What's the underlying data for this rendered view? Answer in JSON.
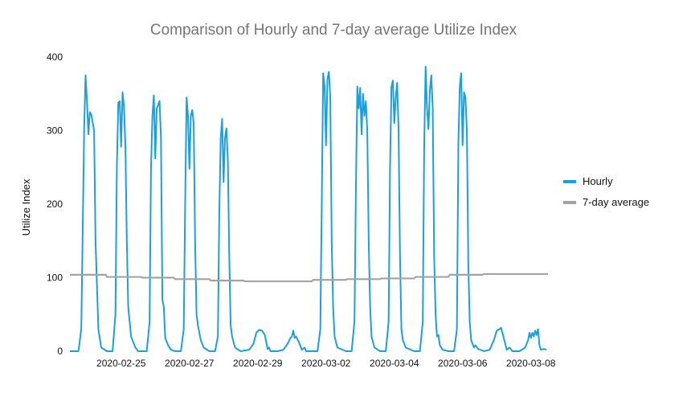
{
  "chart_data": {
    "type": "line",
    "title": "Comparison of Hourly and 7-day average Utilize Index",
    "xlabel": "",
    "ylabel": "Utilize Index",
    "ylim": [
      0,
      400
    ],
    "y_ticks": [
      0,
      100,
      200,
      300,
      400
    ],
    "x_start": "2020-02-24",
    "x_end": "2020-03-09",
    "x_tick_labels": [
      "2020-02-25",
      "2020-02-27",
      "2020-02-29",
      "2020-03-02",
      "2020-03-04",
      "2020-03-06",
      "2020-03-08"
    ],
    "grid": false,
    "legend_position": "right",
    "series": [
      {
        "name": "Hourly",
        "color": "#1a9fe0",
        "points": [
          [
            "2020-02-24 00:00",
            0
          ],
          [
            "2020-02-24 06:00",
            0
          ],
          [
            "2020-02-24 08:00",
            30
          ],
          [
            "2020-02-24 10:00",
            300
          ],
          [
            "2020-02-24 11:00",
            375
          ],
          [
            "2020-02-24 12:00",
            340
          ],
          [
            "2020-02-24 13:00",
            295
          ],
          [
            "2020-02-24 14:00",
            325
          ],
          [
            "2020-02-24 15:00",
            322
          ],
          [
            "2020-02-24 17:00",
            300
          ],
          [
            "2020-02-24 18:00",
            150
          ],
          [
            "2020-02-24 20:00",
            30
          ],
          [
            "2020-02-24 22:00",
            5
          ],
          [
            "2020-02-25 02:00",
            0
          ],
          [
            "2020-02-25 06:00",
            0
          ],
          [
            "2020-02-25 08:00",
            50
          ],
          [
            "2020-02-25 09:00",
            250
          ],
          [
            "2020-02-25 10:00",
            338
          ],
          [
            "2020-02-25 11:00",
            340
          ],
          [
            "2020-02-25 12:00",
            278
          ],
          [
            "2020-02-25 13:00",
            352
          ],
          [
            "2020-02-25 14:00",
            333
          ],
          [
            "2020-02-25 15:00",
            280
          ],
          [
            "2020-02-25 16:00",
            150
          ],
          [
            "2020-02-25 17:00",
            60
          ],
          [
            "2020-02-25 19:00",
            20
          ],
          [
            "2020-02-25 22:00",
            5
          ],
          [
            "2020-02-26 00:00",
            0
          ],
          [
            "2020-02-26 06:00",
            0
          ],
          [
            "2020-02-26 08:00",
            40
          ],
          [
            "2020-02-26 09:00",
            250
          ],
          [
            "2020-02-26 10:00",
            320
          ],
          [
            "2020-02-26 11:00",
            348
          ],
          [
            "2020-02-26 12:00",
            262
          ],
          [
            "2020-02-26 13:00",
            330
          ],
          [
            "2020-02-26 15:00",
            340
          ],
          [
            "2020-02-26 16:00",
            290
          ],
          [
            "2020-02-26 17:00",
            70
          ],
          [
            "2020-02-26 18:00",
            60
          ],
          [
            "2020-02-26 19:00",
            18
          ],
          [
            "2020-02-26 21:00",
            8
          ],
          [
            "2020-02-26 23:00",
            2
          ],
          [
            "2020-02-27 02:00",
            0
          ],
          [
            "2020-02-27 06:00",
            0
          ],
          [
            "2020-02-27 08:00",
            30
          ],
          [
            "2020-02-27 09:00",
            200
          ],
          [
            "2020-02-27 10:00",
            345
          ],
          [
            "2020-02-27 11:00",
            320
          ],
          [
            "2020-02-27 12:00",
            248
          ],
          [
            "2020-02-27 13:00",
            320
          ],
          [
            "2020-02-27 14:00",
            328
          ],
          [
            "2020-02-27 15:00",
            310
          ],
          [
            "2020-02-27 16:00",
            150
          ],
          [
            "2020-02-27 17:00",
            50
          ],
          [
            "2020-02-27 18:00",
            35
          ],
          [
            "2020-02-27 20:00",
            15
          ],
          [
            "2020-02-27 22:00",
            5
          ],
          [
            "2020-02-28 02:00",
            0
          ],
          [
            "2020-02-28 06:00",
            0
          ],
          [
            "2020-02-28 08:00",
            20
          ],
          [
            "2020-02-28 09:00",
            190
          ],
          [
            "2020-02-28 10:00",
            290
          ],
          [
            "2020-02-28 11:00",
            316
          ],
          [
            "2020-02-28 12:00",
            230
          ],
          [
            "2020-02-28 13:00",
            290
          ],
          [
            "2020-02-28 14:00",
            303
          ],
          [
            "2020-02-28 15:00",
            260
          ],
          [
            "2020-02-28 16:00",
            130
          ],
          [
            "2020-02-28 17:00",
            35
          ],
          [
            "2020-02-28 18:00",
            20
          ],
          [
            "2020-02-28 20:00",
            5
          ],
          [
            "2020-02-29 00:00",
            0
          ],
          [
            "2020-02-29 06:00",
            2
          ],
          [
            "2020-02-29 09:00",
            10
          ],
          [
            "2020-02-29 11:00",
            25
          ],
          [
            "2020-02-29 13:00",
            29
          ],
          [
            "2020-02-29 15:00",
            28
          ],
          [
            "2020-02-29 17:00",
            22
          ],
          [
            "2020-02-29 19:00",
            3
          ],
          [
            "2020-02-29 20:00",
            5
          ],
          [
            "2020-02-29 21:00",
            0
          ],
          [
            "2020-03-01 02:00",
            0
          ],
          [
            "2020-03-01 06:00",
            2
          ],
          [
            "2020-03-01 09:00",
            10
          ],
          [
            "2020-03-01 11:00",
            18
          ],
          [
            "2020-03-01 12:00",
            20
          ],
          [
            "2020-03-01 13:00",
            28
          ],
          [
            "2020-03-01 14:00",
            18
          ],
          [
            "2020-03-01 15:00",
            20
          ],
          [
            "2020-03-01 17:00",
            12
          ],
          [
            "2020-03-01 19:00",
            2
          ],
          [
            "2020-03-01 21:00",
            5
          ],
          [
            "2020-03-01 22:00",
            0
          ],
          [
            "2020-03-02 02:00",
            0
          ],
          [
            "2020-03-02 06:00",
            0
          ],
          [
            "2020-03-02 08:00",
            30
          ],
          [
            "2020-03-02 09:00",
            200
          ],
          [
            "2020-03-02 10:00",
            378
          ],
          [
            "2020-03-02 11:00",
            360
          ],
          [
            "2020-03-02 12:00",
            280
          ],
          [
            "2020-03-02 13:00",
            370
          ],
          [
            "2020-03-02 14:00",
            380
          ],
          [
            "2020-03-02 15:00",
            345
          ],
          [
            "2020-03-02 16:00",
            150
          ],
          [
            "2020-03-02 17:00",
            60
          ],
          [
            "2020-03-02 18:00",
            20
          ],
          [
            "2020-03-02 20:00",
            5
          ],
          [
            "2020-03-03 02:00",
            0
          ],
          [
            "2020-03-03 06:00",
            0
          ],
          [
            "2020-03-03 08:00",
            40
          ],
          [
            "2020-03-03 09:00",
            220
          ],
          [
            "2020-03-03 10:00",
            360
          ],
          [
            "2020-03-03 11:00",
            330
          ],
          [
            "2020-03-03 12:00",
            358
          ],
          [
            "2020-03-03 13:00",
            295
          ],
          [
            "2020-03-03 14:00",
            350
          ],
          [
            "2020-03-03 15:00",
            320
          ],
          [
            "2020-03-03 16:00",
            340
          ],
          [
            "2020-03-03 17:00",
            300
          ],
          [
            "2020-03-03 18:00",
            150
          ],
          [
            "2020-03-03 19:00",
            60
          ],
          [
            "2020-03-03 20:00",
            20
          ],
          [
            "2020-03-03 22:00",
            5
          ],
          [
            "2020-03-04 02:00",
            0
          ],
          [
            "2020-03-04 06:00",
            0
          ],
          [
            "2020-03-04 08:00",
            40
          ],
          [
            "2020-03-04 09:00",
            250
          ],
          [
            "2020-03-04 10:00",
            360
          ],
          [
            "2020-03-04 11:00",
            368
          ],
          [
            "2020-03-04 12:00",
            310
          ],
          [
            "2020-03-04 13:00",
            345
          ],
          [
            "2020-03-04 14:00",
            365
          ],
          [
            "2020-03-04 15:00",
            300
          ],
          [
            "2020-03-04 16:00",
            130
          ],
          [
            "2020-03-04 17:00",
            30
          ],
          [
            "2020-03-04 18:00",
            15
          ],
          [
            "2020-03-04 20:00",
            5
          ],
          [
            "2020-03-05 02:00",
            0
          ],
          [
            "2020-03-05 06:00",
            0
          ],
          [
            "2020-03-05 08:00",
            40
          ],
          [
            "2020-03-05 09:00",
            280
          ],
          [
            "2020-03-05 10:00",
            387
          ],
          [
            "2020-03-05 11:00",
            330
          ],
          [
            "2020-03-05 12:00",
            302
          ],
          [
            "2020-03-05 13:00",
            355
          ],
          [
            "2020-03-05 14:00",
            375
          ],
          [
            "2020-03-05 15:00",
            330
          ],
          [
            "2020-03-05 16:00",
            130
          ],
          [
            "2020-03-05 17:00",
            50
          ],
          [
            "2020-03-05 18:00",
            20
          ],
          [
            "2020-03-05 19:00",
            22
          ],
          [
            "2020-03-05 20:00",
            8
          ],
          [
            "2020-03-05 22:00",
            2
          ],
          [
            "2020-03-06 02:00",
            0
          ],
          [
            "2020-03-06 06:00",
            0
          ],
          [
            "2020-03-06 08:00",
            30
          ],
          [
            "2020-03-06 09:00",
            280
          ],
          [
            "2020-03-06 10:00",
            360
          ],
          [
            "2020-03-06 11:00",
            378
          ],
          [
            "2020-03-06 12:00",
            280
          ],
          [
            "2020-03-06 13:00",
            352
          ],
          [
            "2020-03-06 14:00",
            345
          ],
          [
            "2020-03-06 15:00",
            300
          ],
          [
            "2020-03-06 16:00",
            120
          ],
          [
            "2020-03-06 17:00",
            40
          ],
          [
            "2020-03-06 18:00",
            15
          ],
          [
            "2020-03-06 19:00",
            10
          ],
          [
            "2020-03-06 20:00",
            5
          ],
          [
            "2020-03-06 21:00",
            8
          ],
          [
            "2020-03-06 23:00",
            3
          ],
          [
            "2020-03-07 03:00",
            0
          ],
          [
            "2020-03-07 07:00",
            2
          ],
          [
            "2020-03-07 10:00",
            15
          ],
          [
            "2020-03-07 12:00",
            28
          ],
          [
            "2020-03-07 14:00",
            30
          ],
          [
            "2020-03-07 15:00",
            32
          ],
          [
            "2020-03-07 16:00",
            25
          ],
          [
            "2020-03-07 18:00",
            10
          ],
          [
            "2020-03-07 19:00",
            2
          ],
          [
            "2020-03-07 21:00",
            5
          ],
          [
            "2020-03-07 23:00",
            0
          ],
          [
            "2020-03-08 04:00",
            0
          ],
          [
            "2020-03-08 08:00",
            5
          ],
          [
            "2020-03-08 10:00",
            15
          ],
          [
            "2020-03-08 11:00",
            25
          ],
          [
            "2020-03-08 12:00",
            18
          ],
          [
            "2020-03-08 13:00",
            25
          ],
          [
            "2020-03-08 14:00",
            20
          ],
          [
            "2020-03-08 15:00",
            28
          ],
          [
            "2020-03-08 16:00",
            22
          ],
          [
            "2020-03-08 17:00",
            30
          ],
          [
            "2020-03-08 18:00",
            8
          ],
          [
            "2020-03-08 19:00",
            2
          ],
          [
            "2020-03-08 21:00",
            3
          ],
          [
            "2020-03-08 23:00",
            2
          ]
        ]
      },
      {
        "name": "7-day average",
        "color": "#a3a3a3",
        "points": [
          [
            "2020-02-24 00:00",
            104
          ],
          [
            "2020-02-25 01:00",
            104
          ],
          [
            "2020-02-25 02:00",
            101
          ],
          [
            "2020-02-26 02:00",
            101
          ],
          [
            "2020-02-26 03:00",
            100
          ],
          [
            "2020-02-27 01:00",
            100
          ],
          [
            "2020-02-27 02:00",
            98
          ],
          [
            "2020-02-28 02:00",
            98
          ],
          [
            "2020-02-28 03:00",
            96
          ],
          [
            "2020-02-29 02:00",
            96
          ],
          [
            "2020-02-29 03:00",
            95
          ],
          [
            "2020-03-02 02:00",
            95
          ],
          [
            "2020-03-02 03:00",
            97
          ],
          [
            "2020-03-03 02:00",
            97
          ],
          [
            "2020-03-03 03:00",
            98
          ],
          [
            "2020-03-04 02:00",
            98
          ],
          [
            "2020-03-04 03:00",
            99
          ],
          [
            "2020-03-05 02:00",
            99
          ],
          [
            "2020-03-05 03:00",
            101
          ],
          [
            "2020-03-06 02:00",
            101
          ],
          [
            "2020-03-06 03:00",
            104
          ],
          [
            "2020-03-07 02:00",
            104
          ],
          [
            "2020-03-07 03:00",
            105
          ],
          [
            "2020-03-09 00:00",
            105
          ]
        ]
      }
    ]
  }
}
